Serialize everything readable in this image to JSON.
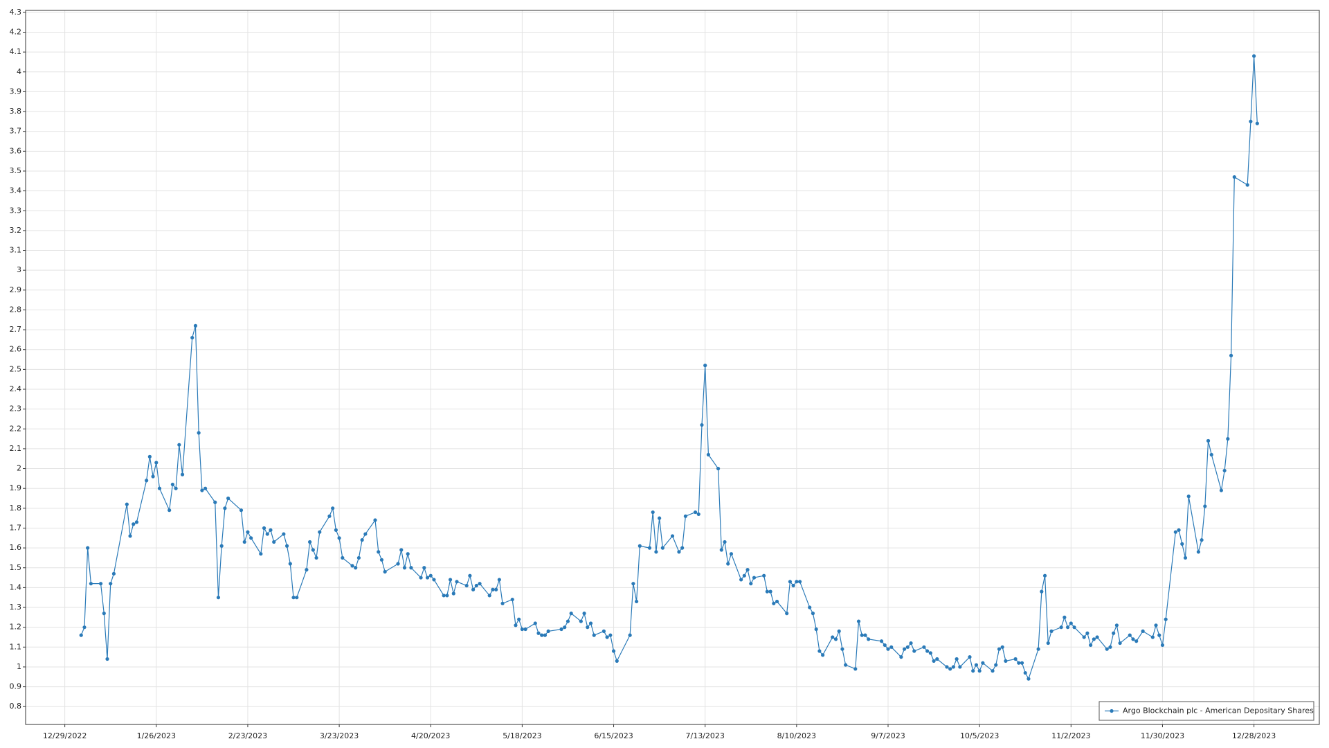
{
  "chart_data": {
    "type": "line",
    "x": [
      "1/3/2023",
      "1/4/2023",
      "1/5/2023",
      "1/6/2023",
      "1/9/2023",
      "1/10/2023",
      "1/11/2023",
      "1/12/2023",
      "1/13/2023",
      "1/17/2023",
      "1/18/2023",
      "1/19/2023",
      "1/20/2023",
      "1/23/2023",
      "1/24/2023",
      "1/25/2023",
      "1/26/2023",
      "1/27/2023",
      "1/30/2023",
      "1/31/2023",
      "2/1/2023",
      "2/2/2023",
      "2/3/2023",
      "2/6/2023",
      "2/7/2023",
      "2/8/2023",
      "2/9/2023",
      "2/10/2023",
      "2/13/2023",
      "2/14/2023",
      "2/15/2023",
      "2/16/2023",
      "2/17/2023",
      "2/21/2023",
      "2/22/2023",
      "2/23/2023",
      "2/24/2023",
      "2/27/2023",
      "2/28/2023",
      "3/1/2023",
      "3/2/2023",
      "3/3/2023",
      "3/6/2023",
      "3/7/2023",
      "3/8/2023",
      "3/9/2023",
      "3/10/2023",
      "3/13/2023",
      "3/14/2023",
      "3/15/2023",
      "3/16/2023",
      "3/17/2023",
      "3/20/2023",
      "3/21/2023",
      "3/22/2023",
      "3/23/2023",
      "3/24/2023",
      "3/27/2023",
      "3/28/2023",
      "3/29/2023",
      "3/30/2023",
      "3/31/2023",
      "4/3/2023",
      "4/4/2023",
      "4/5/2023",
      "4/6/2023",
      "4/10/2023",
      "4/11/2023",
      "4/12/2023",
      "4/13/2023",
      "4/14/2023",
      "4/17/2023",
      "4/18/2023",
      "4/19/2023",
      "4/20/2023",
      "4/21/2023",
      "4/24/2023",
      "4/25/2023",
      "4/26/2023",
      "4/27/2023",
      "4/28/2023",
      "5/1/2023",
      "5/2/2023",
      "5/3/2023",
      "5/4/2023",
      "5/5/2023",
      "5/8/2023",
      "5/9/2023",
      "5/10/2023",
      "5/11/2023",
      "5/12/2023",
      "5/15/2023",
      "5/16/2023",
      "5/17/2023",
      "5/18/2023",
      "5/19/2023",
      "5/22/2023",
      "5/23/2023",
      "5/24/2023",
      "5/25/2023",
      "5/26/2023",
      "5/30/2023",
      "5/31/2023",
      "6/1/2023",
      "6/2/2023",
      "6/5/2023",
      "6/6/2023",
      "6/7/2023",
      "6/8/2023",
      "6/9/2023",
      "6/12/2023",
      "6/13/2023",
      "6/14/2023",
      "6/15/2023",
      "6/16/2023",
      "6/20/2023",
      "6/21/2023",
      "6/22/2023",
      "6/23/2023",
      "6/26/2023",
      "6/27/2023",
      "6/28/2023",
      "6/29/2023",
      "6/30/2023",
      "7/3/2023",
      "7/5/2023",
      "7/6/2023",
      "7/7/2023",
      "7/10/2023",
      "7/11/2023",
      "7/12/2023",
      "7/13/2023",
      "7/14/2023",
      "7/17/2023",
      "7/18/2023",
      "7/19/2023",
      "7/20/2023",
      "7/21/2023",
      "7/24/2023",
      "7/25/2023",
      "7/26/2023",
      "7/27/2023",
      "7/28/2023",
      "7/31/2023",
      "8/1/2023",
      "8/2/2023",
      "8/3/2023",
      "8/4/2023",
      "8/7/2023",
      "8/8/2023",
      "8/9/2023",
      "8/10/2023",
      "8/11/2023",
      "8/14/2023",
      "8/15/2023",
      "8/16/2023",
      "8/17/2023",
      "8/18/2023",
      "8/21/2023",
      "8/22/2023",
      "8/23/2023",
      "8/24/2023",
      "8/25/2023",
      "8/28/2023",
      "8/29/2023",
      "8/30/2023",
      "8/31/2023",
      "9/1/2023",
      "9/5/2023",
      "9/6/2023",
      "9/7/2023",
      "9/8/2023",
      "9/11/2023",
      "9/12/2023",
      "9/13/2023",
      "9/14/2023",
      "9/15/2023",
      "9/18/2023",
      "9/19/2023",
      "9/20/2023",
      "9/21/2023",
      "9/22/2023",
      "9/25/2023",
      "9/26/2023",
      "9/27/2023",
      "9/28/2023",
      "9/29/2023",
      "10/2/2023",
      "10/3/2023",
      "10/4/2023",
      "10/5/2023",
      "10/6/2023",
      "10/9/2023",
      "10/10/2023",
      "10/11/2023",
      "10/12/2023",
      "10/13/2023",
      "10/16/2023",
      "10/17/2023",
      "10/18/2023",
      "10/19/2023",
      "10/20/2023",
      "10/23/2023",
      "10/24/2023",
      "10/25/2023",
      "10/26/2023",
      "10/27/2023",
      "10/30/2023",
      "10/31/2023",
      "11/1/2023",
      "11/2/2023",
      "11/3/2023",
      "11/6/2023",
      "11/7/2023",
      "11/8/2023",
      "11/9/2023",
      "11/10/2023",
      "11/13/2023",
      "11/14/2023",
      "11/15/2023",
      "11/16/2023",
      "11/17/2023",
      "11/20/2023",
      "11/21/2023",
      "11/22/2023",
      "11/24/2023",
      "11/27/2023",
      "11/28/2023",
      "11/29/2023",
      "11/30/2023",
      "12/1/2023",
      "12/4/2023",
      "12/5/2023",
      "12/6/2023",
      "12/7/2023",
      "12/8/2023",
      "12/11/2023",
      "12/12/2023",
      "12/13/2023",
      "12/14/2023",
      "12/15/2023",
      "12/18/2023",
      "12/19/2023",
      "12/20/2023",
      "12/21/2023",
      "12/22/2023",
      "12/26/2023",
      "12/27/2023",
      "12/28/2023",
      "12/29/2023"
    ],
    "series": [
      {
        "name": "Argo Blockchain plc - American Depositary Shares",
        "color": "#2a7ab8",
        "values": [
          1.16,
          1.2,
          1.6,
          1.42,
          1.42,
          1.27,
          1.04,
          1.42,
          1.47,
          1.82,
          1.66,
          1.72,
          1.73,
          1.94,
          2.06,
          1.96,
          2.03,
          1.9,
          1.79,
          1.92,
          1.9,
          2.12,
          1.97,
          2.66,
          2.72,
          2.18,
          1.89,
          1.9,
          1.83,
          1.35,
          1.61,
          1.8,
          1.85,
          1.79,
          1.63,
          1.68,
          1.65,
          1.57,
          1.7,
          1.67,
          1.69,
          1.63,
          1.67,
          1.61,
          1.52,
          1.35,
          1.35,
          1.49,
          1.63,
          1.59,
          1.55,
          1.68,
          1.76,
          1.8,
          1.69,
          1.65,
          1.55,
          1.51,
          1.5,
          1.55,
          1.64,
          1.67,
          1.74,
          1.58,
          1.54,
          1.48,
          1.52,
          1.59,
          1.5,
          1.57,
          1.5,
          1.45,
          1.5,
          1.45,
          1.46,
          1.44,
          1.36,
          1.36,
          1.44,
          1.37,
          1.43,
          1.41,
          1.46,
          1.39,
          1.41,
          1.42,
          1.36,
          1.39,
          1.39,
          1.44,
          1.32,
          1.34,
          1.21,
          1.24,
          1.19,
          1.19,
          1.22,
          1.17,
          1.16,
          1.16,
          1.18,
          1.19,
          1.2,
          1.23,
          1.27,
          1.23,
          1.27,
          1.2,
          1.22,
          1.16,
          1.18,
          1.15,
          1.16,
          1.08,
          1.03,
          1.16,
          1.42,
          1.33,
          1.61,
          1.6,
          1.78,
          1.58,
          1.75,
          1.6,
          1.66,
          1.58,
          1.6,
          1.76,
          1.78,
          1.77,
          2.22,
          2.52,
          2.07,
          2.0,
          1.59,
          1.63,
          1.52,
          1.57,
          1.44,
          1.46,
          1.49,
          1.42,
          1.45,
          1.46,
          1.38,
          1.38,
          1.32,
          1.33,
          1.27,
          1.43,
          1.41,
          1.43,
          1.43,
          1.3,
          1.27,
          1.19,
          1.08,
          1.06,
          1.15,
          1.14,
          1.18,
          1.09,
          1.01,
          0.99,
          1.23,
          1.16,
          1.16,
          1.14,
          1.13,
          1.11,
          1.09,
          1.1,
          1.05,
          1.09,
          1.1,
          1.12,
          1.08,
          1.1,
          1.08,
          1.07,
          1.03,
          1.04,
          1.0,
          0.99,
          1.0,
          1.04,
          1.0,
          1.05,
          0.98,
          1.01,
          0.98,
          1.02,
          0.98,
          1.01,
          1.09,
          1.1,
          1.03,
          1.04,
          1.02,
          1.02,
          0.97,
          0.94,
          1.09,
          1.38,
          1.46,
          1.12,
          1.18,
          1.2,
          1.25,
          1.2,
          1.22,
          1.2,
          1.15,
          1.17,
          1.11,
          1.14,
          1.15,
          1.09,
          1.1,
          1.17,
          1.21,
          1.12,
          1.16,
          1.14,
          1.13,
          1.18,
          1.15,
          1.21,
          1.16,
          1.11,
          1.24,
          1.68,
          1.69,
          1.62,
          1.55,
          1.86,
          1.58,
          1.64,
          1.81,
          2.14,
          2.07,
          1.89,
          1.99,
          2.15,
          2.57,
          3.47,
          3.43,
          3.75,
          4.08,
          3.74
        ]
      }
    ],
    "xlim": [
      "12/17/2022",
      "1/17/2024"
    ],
    "xticks": [
      "12/29/2022",
      "1/26/2023",
      "2/23/2023",
      "3/23/2023",
      "4/20/2023",
      "5/18/2023",
      "6/15/2023",
      "7/13/2023",
      "8/10/2023",
      "9/7/2023",
      "10/5/2023",
      "11/2/2023",
      "11/30/2023",
      "12/28/2023"
    ],
    "ylim": [
      0.71,
      4.31
    ],
    "yticks": [
      0.8,
      0.9,
      1,
      1.1,
      1.2,
      1.3,
      1.4,
      1.5,
      1.6,
      1.7,
      1.8,
      1.9,
      2,
      2.1,
      2.2,
      2.3,
      2.4,
      2.5,
      2.6,
      2.7,
      2.8,
      2.9,
      3,
      3.1,
      3.2,
      3.3,
      3.4,
      3.5,
      3.6,
      3.7,
      3.8,
      3.9,
      4,
      4.1,
      4.2,
      4.3
    ],
    "grid": true,
    "legend": "lower right"
  }
}
